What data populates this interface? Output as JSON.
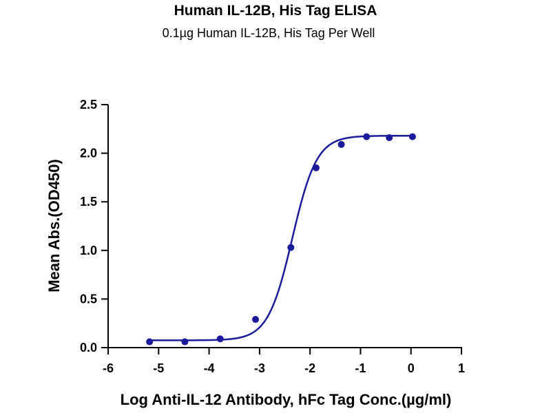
{
  "chart_data": {
    "type": "scatter",
    "title": "Human IL-12B, His Tag ELISA",
    "subtitle": "0.1µg Human IL-12B, His Tag Per Well",
    "xlabel": "Log Anti-IL-12 Antibody, hFc Tag Conc.(µg/ml)",
    "ylabel": "Mean Abs.(OD450)",
    "xlim": [
      -6,
      1
    ],
    "ylim": [
      0,
      2.5
    ],
    "x_ticks": [
      "-6",
      "-5",
      "-4",
      "-3",
      "-2",
      "-1",
      "0",
      "1"
    ],
    "y_ticks": [
      "0.0",
      "0.5",
      "1.0",
      "1.5",
      "2.0",
      "2.5"
    ],
    "grid": false,
    "series": [
      {
        "color": "#1a1a9c",
        "x": [
          -5.18,
          -4.48,
          -3.78,
          -3.08,
          -2.38,
          -1.88,
          -1.38,
          -0.88,
          -0.43,
          0.03
        ],
        "y": [
          0.06,
          0.06,
          0.09,
          0.29,
          1.03,
          1.85,
          2.09,
          2.17,
          2.16,
          2.17
        ],
        "fit_curve": "4PL",
        "fit": {
          "bottom": 0.075,
          "top": 2.18,
          "logEC50": -2.35,
          "hill": 1.8
        }
      }
    ]
  }
}
